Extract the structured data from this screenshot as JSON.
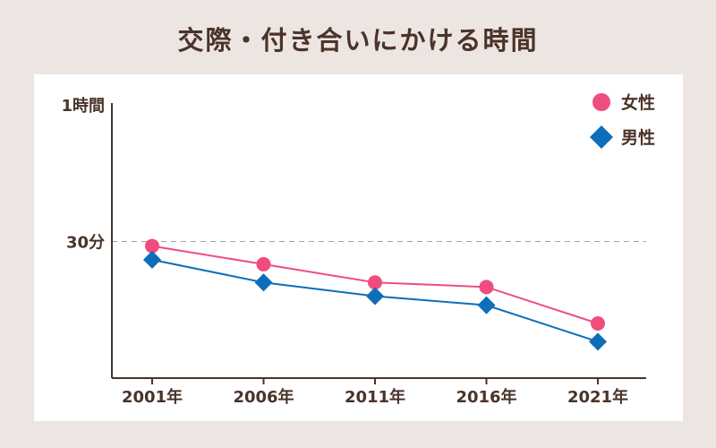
{
  "page": {
    "title": "交際・付き合いにかける時間"
  },
  "chart_data": {
    "type": "line",
    "title": "交際・付き合いにかける時間",
    "x": [
      "2001年",
      "2006年",
      "2011年",
      "2016年",
      "2021年"
    ],
    "y_unit": "minutes",
    "ylim": [
      0,
      60
    ],
    "y_ticks": [
      {
        "value": 60,
        "label": "1時間"
      },
      {
        "value": 30,
        "label": "30分"
      }
    ],
    "reference_line": {
      "value": 30,
      "style": "dashed"
    },
    "grid": false,
    "legend": {
      "placement": "top-right"
    },
    "series": [
      {
        "name": "女性",
        "marker": "circle",
        "color": "#f04d7f",
        "values": [
          29,
          25,
          21,
          20,
          12
        ]
      },
      {
        "name": "男性",
        "marker": "diamond",
        "color": "#0d6eb9",
        "values": [
          26,
          21,
          18,
          16,
          8
        ]
      }
    ]
  }
}
